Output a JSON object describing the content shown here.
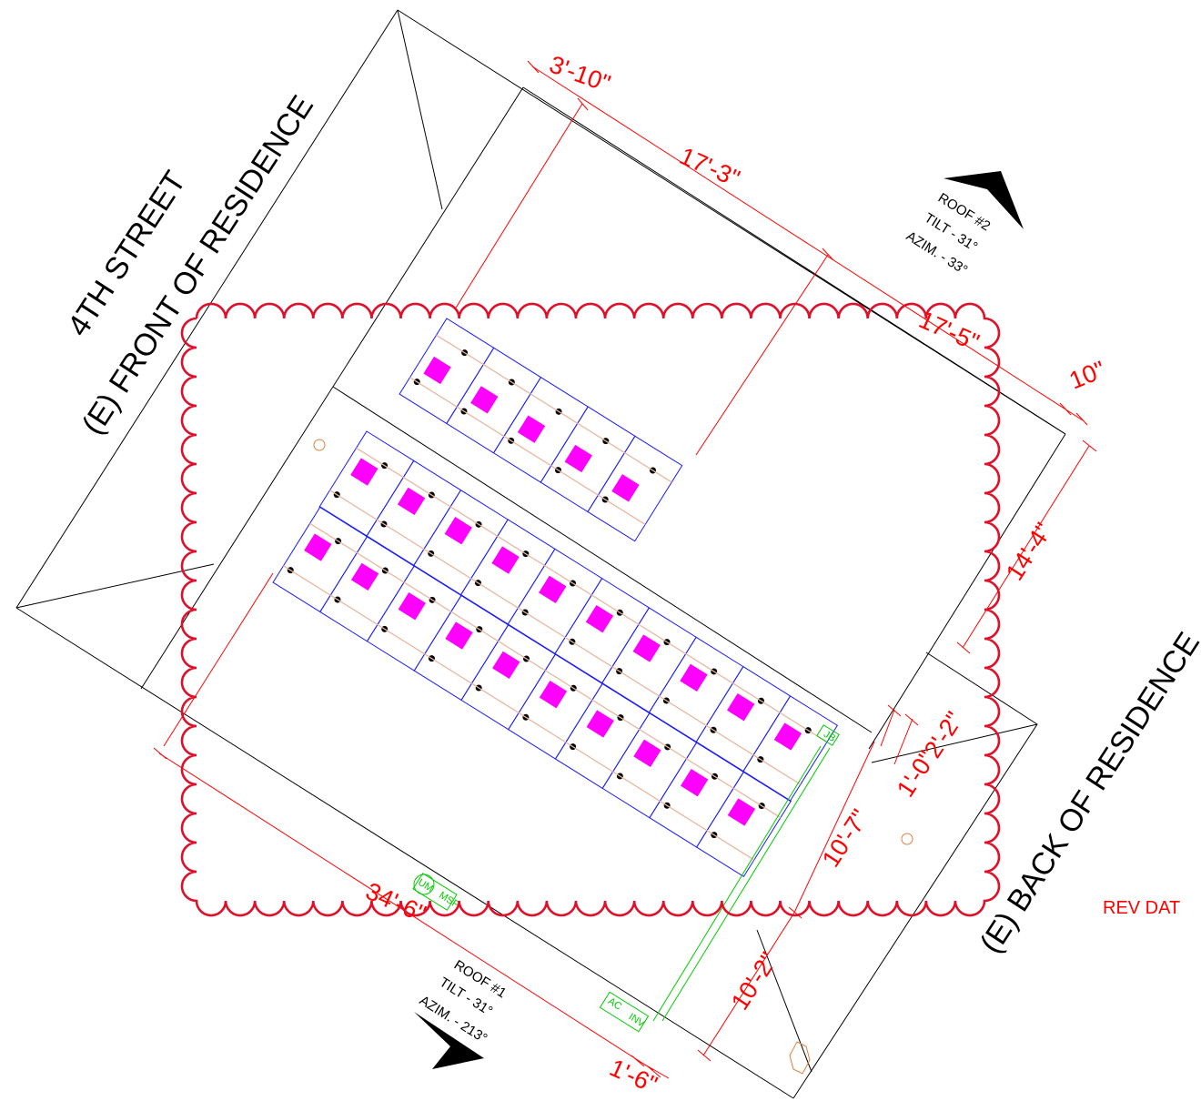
{
  "labels": {
    "street": "4TH STREET",
    "front": "(E) FRONT OF RESIDENCE",
    "back": "(E) BACK OF RESIDENCE",
    "rev": "REV DAT"
  },
  "roof2": {
    "name": "ROOF #2",
    "tilt": "TILT - 31°",
    "azim": "AZIM. - 33°"
  },
  "roof1": {
    "name": "ROOF #1",
    "tilt": "TILT - 31°",
    "azim": "AZIM. - 213°"
  },
  "dimensions": {
    "d1": "3'-10\"",
    "d2": "17'-3\"",
    "d3": "17'-5\"",
    "d4": "10\"",
    "d5": "14'-4\"",
    "d6": "2'-2\"",
    "d7": "1'-0\"",
    "d8": "10'-7\"",
    "d9": "10'-2\"",
    "d10": "34'-6\"",
    "d11": "1'-6\""
  },
  "equipment": {
    "um": "UM",
    "msp": "MSP",
    "ac": "AC",
    "inv": "INV",
    "jb": "JB"
  },
  "colors": {
    "dimension": "#ff0000",
    "panel_outline": "#1a1aff",
    "optimizer": "#ff00ff",
    "conduit": "#00cc00",
    "revision_cloud": "#e0102a"
  }
}
